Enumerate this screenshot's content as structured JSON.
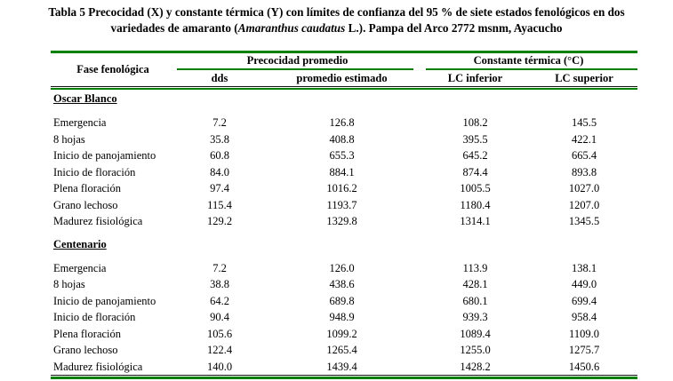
{
  "title": {
    "line1": "Tabla 5 Precocidad (X) y constante térmica (Y) con límites de confianza del 95 % de siete estados fenológicos en dos",
    "line2_pre": "variedades de amaranto (",
    "line2_italic": "Amaranthus caudatus",
    "line2_post": " L.). Pampa del Arco 2772 msnm, Ayacucho"
  },
  "table": {
    "accent_color": "#008000",
    "col_header_left": "Fase fenológica",
    "group_headers": [
      "Precocidad promedio",
      "Constante térmica (°C)"
    ],
    "sub_headers": [
      "dds",
      "promedio estimado",
      "LC inferior",
      "LC superior"
    ],
    "sections": [
      {
        "name": "Oscar Blanco",
        "rows": [
          {
            "fase": "Emergencia",
            "dds": "7.2",
            "promedio_estimado": "126.8",
            "lc_inferior": "108.2",
            "lc_superior": "145.5"
          },
          {
            "fase": "8 hojas",
            "dds": "35.8",
            "promedio_estimado": "408.8",
            "lc_inferior": "395.5",
            "lc_superior": "422.1"
          },
          {
            "fase": "Inicio de panojamiento",
            "dds": "60.8",
            "promedio_estimado": "655.3",
            "lc_inferior": "645.2",
            "lc_superior": "665.4"
          },
          {
            "fase": "Inicio de floración",
            "dds": "84.0",
            "promedio_estimado": "884.1",
            "lc_inferior": "874.4",
            "lc_superior": "893.8"
          },
          {
            "fase": "Plena floración",
            "dds": "97.4",
            "promedio_estimado": "1016.2",
            "lc_inferior": "1005.5",
            "lc_superior": "1027.0"
          },
          {
            "fase": "Grano lechoso",
            "dds": "115.4",
            "promedio_estimado": "1193.7",
            "lc_inferior": "1180.4",
            "lc_superior": "1207.0"
          },
          {
            "fase": "Madurez fisiológica",
            "dds": "129.2",
            "promedio_estimado": "1329.8",
            "lc_inferior": "1314.1",
            "lc_superior": "1345.5"
          }
        ]
      },
      {
        "name": "Centenario",
        "rows": [
          {
            "fase": "Emergencia",
            "dds": "7.2",
            "promedio_estimado": "126.0",
            "lc_inferior": "113.9",
            "lc_superior": "138.1"
          },
          {
            "fase": "8 hojas",
            "dds": "38.8",
            "promedio_estimado": "438.6",
            "lc_inferior": "428.1",
            "lc_superior": "449.0"
          },
          {
            "fase": "Inicio de panojamiento",
            "dds": "64.2",
            "promedio_estimado": "689.8",
            "lc_inferior": "680.1",
            "lc_superior": "699.4"
          },
          {
            "fase": "Inicio de floración",
            "dds": "90.4",
            "promedio_estimado": "948.9",
            "lc_inferior": "939.3",
            "lc_superior": "958.4"
          },
          {
            "fase": "Plena floración",
            "dds": "105.6",
            "promedio_estimado": "1099.2",
            "lc_inferior": "1089.4",
            "lc_superior": "1109.0"
          },
          {
            "fase": "Grano lechoso",
            "dds": "122.4",
            "promedio_estimado": "1265.4",
            "lc_inferior": "1255.0",
            "lc_superior": "1275.7"
          },
          {
            "fase": "Madurez fisiológica",
            "dds": "140.0",
            "promedio_estimado": "1439.4",
            "lc_inferior": "1428.2",
            "lc_superior": "1450.6"
          }
        ]
      }
    ]
  }
}
